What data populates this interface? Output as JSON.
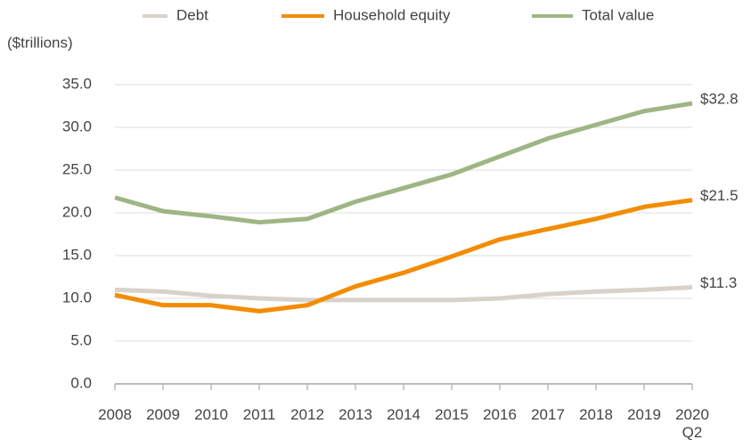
{
  "chart_data": {
    "type": "line",
    "y_label": "($trillions)",
    "categories": [
      "2008",
      "2009",
      "2010",
      "2011",
      "2012",
      "2013",
      "2014",
      "2015",
      "2016",
      "2017",
      "2018",
      "2019",
      "2020 Q2"
    ],
    "series": [
      {
        "name": "Debt",
        "color": "#d8d2ca",
        "values": [
          11.0,
          10.8,
          10.3,
          10.0,
          9.8,
          9.8,
          9.8,
          9.8,
          10.0,
          10.5,
          10.8,
          11.0,
          11.3
        ],
        "value_labels": [
          null,
          null,
          null,
          null,
          null,
          null,
          null,
          null,
          null,
          null,
          null,
          null,
          "$11.3"
        ]
      },
      {
        "name": "Household equity",
        "color": "#f28c00",
        "values": [
          10.4,
          9.2,
          9.2,
          8.5,
          9.2,
          11.4,
          13.0,
          14.9,
          16.9,
          18.1,
          19.3,
          20.7,
          21.5
        ],
        "value_labels": [
          null,
          null,
          null,
          null,
          null,
          null,
          null,
          null,
          null,
          null,
          null,
          null,
          "$21.5"
        ]
      },
      {
        "name": "Total value",
        "color": "#9fb584",
        "values": [
          21.8,
          20.2,
          19.6,
          18.9,
          19.3,
          21.3,
          22.9,
          24.5,
          26.6,
          28.7,
          30.3,
          31.9,
          32.8
        ],
        "value_labels": [
          null,
          null,
          null,
          null,
          null,
          null,
          null,
          null,
          null,
          null,
          null,
          null,
          "$32.8"
        ]
      }
    ],
    "ylim": [
      0,
      35
    ],
    "yticks": [
      {
        "value": 0,
        "label": "0.0"
      },
      {
        "value": 5,
        "label": "5.0"
      },
      {
        "value": 10,
        "label": "10.0"
      },
      {
        "value": 15,
        "label": "15.0"
      },
      {
        "value": 20,
        "label": "20.0"
      },
      {
        "value": 25,
        "label": "25.0"
      },
      {
        "value": 30,
        "label": "30.0"
      },
      {
        "value": 35,
        "label": "35.0"
      }
    ],
    "grid": true,
    "legend": "top"
  }
}
